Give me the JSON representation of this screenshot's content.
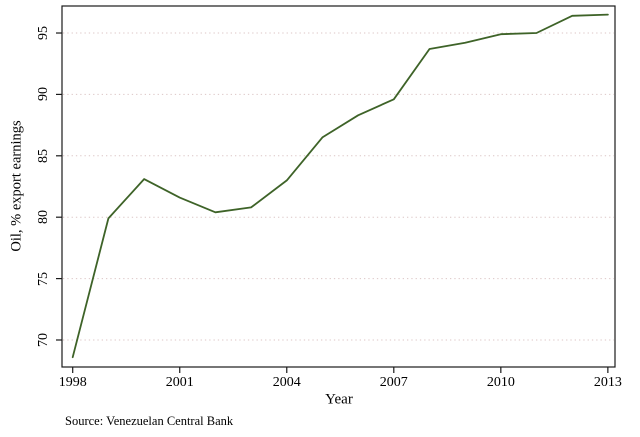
{
  "chart_data": {
    "type": "line",
    "title": "",
    "xlabel": "Year",
    "ylabel": "Oil, % export earnings",
    "source_note": "Source: Venezuelan Central Bank",
    "x": [
      1998,
      1999,
      2000,
      2001,
      2002,
      2003,
      2004,
      2005,
      2006,
      2007,
      2008,
      2009,
      2010,
      2011,
      2012,
      2013
    ],
    "series": [
      {
        "name": "Oil, % export earnings",
        "values": [
          68.6,
          79.9,
          83.1,
          81.6,
          80.4,
          80.8,
          83.0,
          86.5,
          88.3,
          89.6,
          93.7,
          94.2,
          94.9,
          95.0,
          96.4,
          96.5
        ]
      }
    ],
    "x_ticks": [
      1998,
      2001,
      2004,
      2007,
      2010,
      2013
    ],
    "y_ticks": [
      70,
      75,
      80,
      85,
      90,
      95
    ],
    "xlim": [
      1997.7,
      2013.2
    ],
    "ylim": [
      67.8,
      97.2
    ],
    "grid": "horizontal-dotted",
    "legend": "none",
    "line_color": "#3e6328",
    "grid_color": "#dcc6c6",
    "axis_color": "#1a1a1a",
    "text_color": "#000000"
  }
}
